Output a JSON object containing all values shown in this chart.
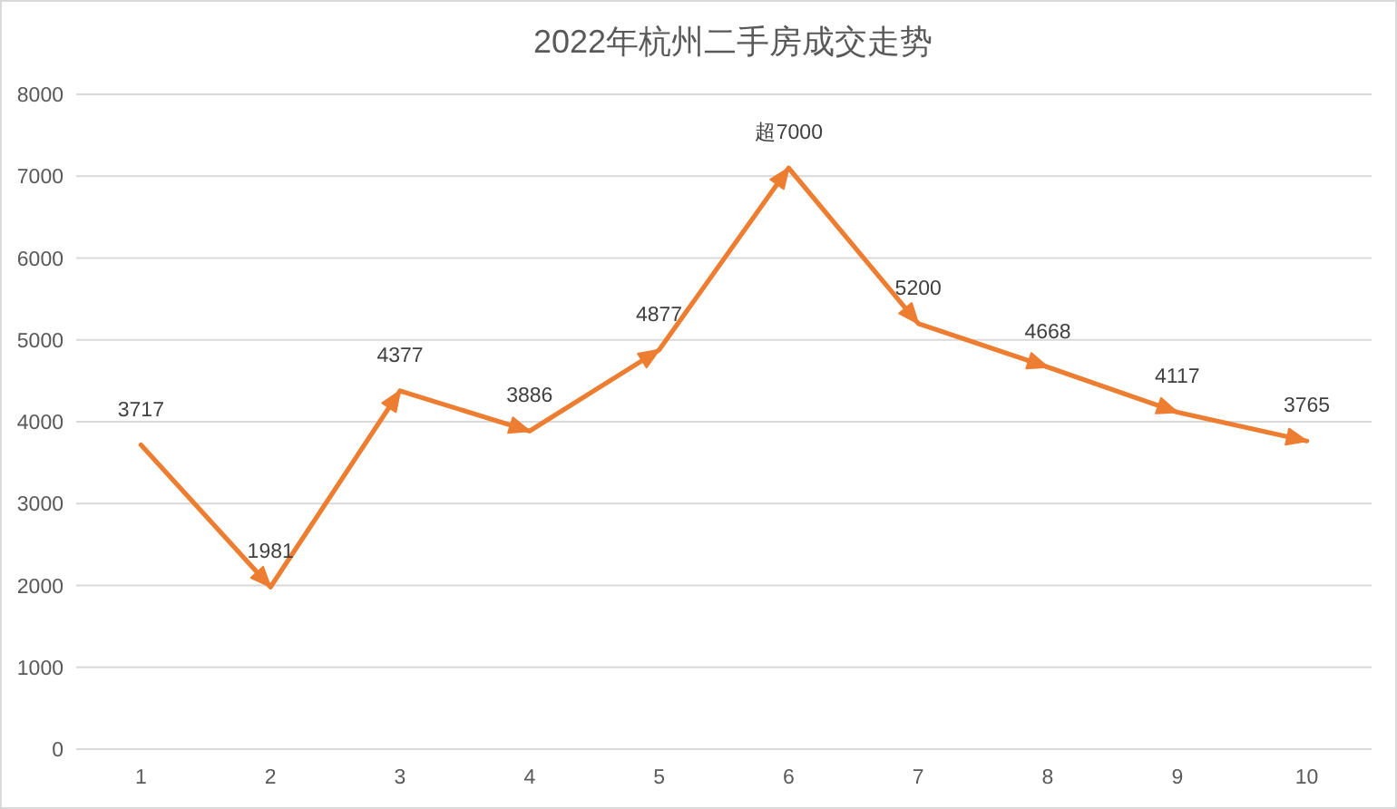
{
  "chart_data": {
    "type": "line",
    "title": "2022年杭州二手房成交走势",
    "categories": [
      "1",
      "2",
      "3",
      "4",
      "5",
      "6",
      "7",
      "8",
      "9",
      "10"
    ],
    "values": [
      3717,
      1981,
      4377,
      3886,
      4877,
      7100,
      5200,
      4668,
      4117,
      3765
    ],
    "value_labels": [
      "3717",
      "1981",
      "4377",
      "3886",
      "4877",
      "超7000",
      "5200",
      "4668",
      "4117",
      "3765"
    ],
    "color": "#ed7d31",
    "ylim": [
      0,
      8000
    ],
    "yticks": [
      0,
      1000,
      2000,
      3000,
      4000,
      5000,
      6000,
      7000,
      8000
    ],
    "grid": "y",
    "line_style": "solid"
  }
}
